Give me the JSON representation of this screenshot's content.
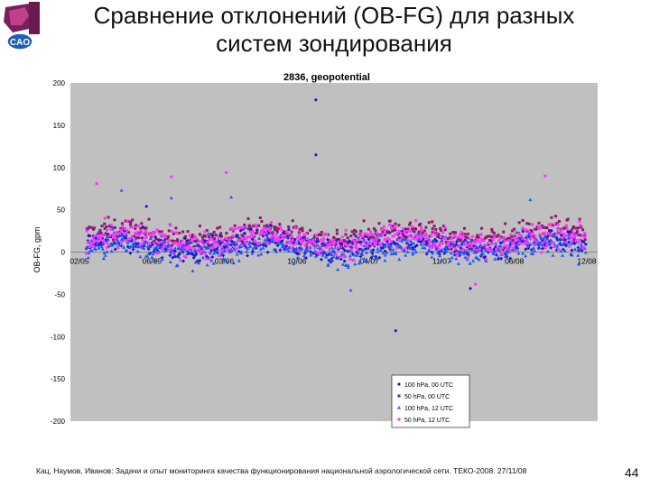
{
  "slide": {
    "title_line1": "Сравнение отклонений (OB-FG) для разных",
    "title_line2": "систем зондирования",
    "footer": "Кац, Наумов, Иванов: Задачи и опыт мониторинга качества функционирования национальной аэрологической сети. ТЕКО-2008. 27/11/08",
    "page_number": "44",
    "logo_text": "CAO"
  },
  "chart_data": {
    "type": "scatter",
    "title": "2836, geopotential",
    "ylabel": "OB-FG, gpm",
    "ylim": [
      -200,
      200
    ],
    "yticks": [
      200,
      150,
      100,
      50,
      0,
      -50,
      -100,
      -150,
      -200
    ],
    "xticks": [
      "02/05",
      "06/05",
      "03/06",
      "10/06",
      "04/07",
      "11/07",
      "06/08",
      "12/08"
    ],
    "plot_background": "#c0c0c0",
    "legend_position": "bottom-right",
    "series": [
      {
        "name": "100 hPa, 00 UTC",
        "color": "#1a1acc",
        "marker": "diamond"
      },
      {
        "name": "50 hPa, 00 UTC",
        "color": "#8b1a6b",
        "marker": "square"
      },
      {
        "name": "100 hPa, 12 UTC",
        "color": "#2255ff",
        "marker": "triangle"
      },
      {
        "name": "50 hPa, 12 UTC",
        "color": "#ff33ff",
        "marker": "square"
      }
    ],
    "outliers": [
      {
        "series": 0,
        "x": 0.46,
        "y": 180
      },
      {
        "series": 0,
        "x": 0.46,
        "y": 115
      },
      {
        "series": 0,
        "x": 0.62,
        "y": -93
      },
      {
        "series": 2,
        "x": 0.53,
        "y": -45
      },
      {
        "series": 3,
        "x": 0.02,
        "y": 81
      },
      {
        "series": 3,
        "x": 0.17,
        "y": 89
      },
      {
        "series": 3,
        "x": 0.28,
        "y": 94
      },
      {
        "series": 3,
        "x": 0.92,
        "y": 90
      },
      {
        "series": 2,
        "x": 0.07,
        "y": 73
      },
      {
        "series": 0,
        "x": 0.12,
        "y": 54
      },
      {
        "series": 2,
        "x": 0.17,
        "y": 64
      },
      {
        "series": 2,
        "x": 0.29,
        "y": 65
      },
      {
        "series": 2,
        "x": 0.89,
        "y": 62
      },
      {
        "series": 3,
        "x": 0.78,
        "y": -38
      },
      {
        "series": 0,
        "x": 0.77,
        "y": -43
      }
    ]
  }
}
